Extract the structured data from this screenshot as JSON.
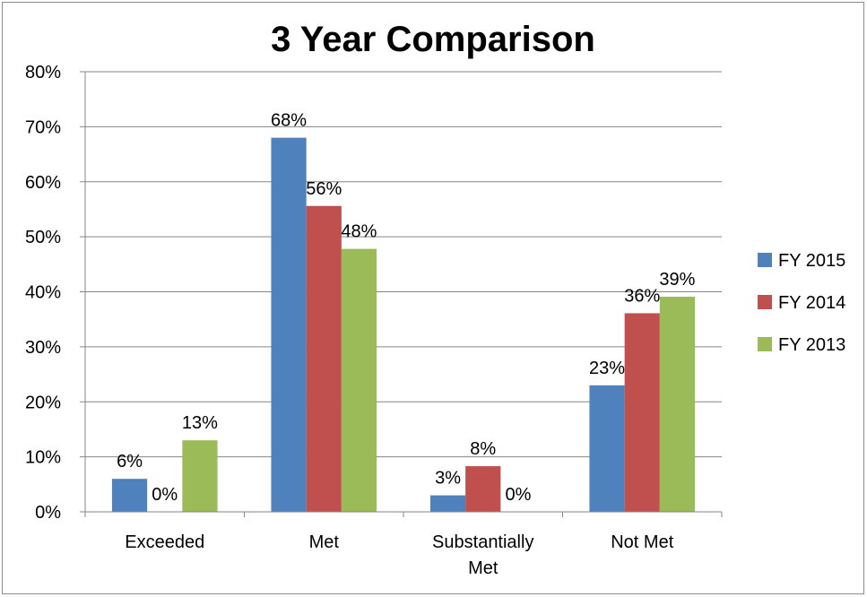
{
  "chart_data": {
    "type": "bar",
    "title": "3 Year Comparison",
    "categories": [
      "Exceeded",
      "Met",
      "Substantially Met",
      "Not Met"
    ],
    "category_label_lines": [
      [
        "Exceeded"
      ],
      [
        "Met"
      ],
      [
        "Substantially",
        "Met"
      ],
      [
        "Not Met"
      ]
    ],
    "series": [
      {
        "name": "FY 2015",
        "color": "#4f81bd",
        "values": [
          6,
          68,
          3,
          23
        ],
        "labels": [
          "6%",
          "68%",
          "3%",
          "23%"
        ]
      },
      {
        "name": "FY 2014",
        "color": "#c0504d",
        "values": [
          0,
          55.6,
          8.3,
          36.1
        ],
        "labels": [
          "0%",
          "56%",
          "8%",
          "36%"
        ]
      },
      {
        "name": "FY 2013",
        "color": "#9bbb59",
        "values": [
          13,
          47.8,
          0,
          39.1
        ],
        "labels": [
          "13%",
          "48%",
          "0%",
          "39%"
        ]
      }
    ],
    "ylim": [
      0,
      80
    ],
    "y_ticks": [
      "0%",
      "10%",
      "20%",
      "30%",
      "40%",
      "50%",
      "60%",
      "70%",
      "80%"
    ],
    "grid": true,
    "legend_position": "right"
  }
}
